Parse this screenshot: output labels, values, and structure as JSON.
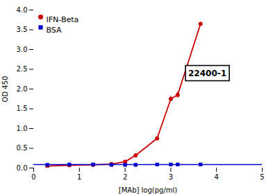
{
  "chart_data": {
    "type": "scatter",
    "title": "",
    "xlabel": "[MAb] log(pg/ml)",
    "ylabel": "OD 450",
    "xlim": [
      0,
      5
    ],
    "ylim": [
      0,
      4.0
    ],
    "xticks": [
      0,
      1,
      2,
      3,
      4,
      5
    ],
    "yticks": [
      {
        "value": 0.0,
        "label": "0.0"
      },
      0.5,
      {
        "value": 1.0,
        "label": "1.0"
      },
      1.5,
      {
        "value": 2.0,
        "label": "2.0"
      },
      2.5,
      {
        "value": 3.0,
        "label": "3.0"
      },
      3.5,
      {
        "value": 4.0,
        "label": "4.0"
      }
    ],
    "grid": false,
    "legend": "upper left",
    "annotation": "22400-1",
    "series": [
      {
        "name": "IFN-Beta",
        "color": "#cc0000",
        "marker": "circle",
        "line_style": "solid",
        "x": [
          0.3,
          0.78,
          1.3,
          1.7,
          2.0,
          2.23,
          2.7,
          3.0,
          3.15,
          3.65
        ],
        "values": [
          0.05,
          0.07,
          0.08,
          0.1,
          0.16,
          0.32,
          0.75,
          1.75,
          1.85,
          3.65
        ],
        "errors": [
          0.01,
          0.01,
          0.01,
          0.01,
          0.02,
          0.03,
          0.04,
          0.07,
          0.08,
          0.05
        ]
      },
      {
        "name": "BSA",
        "color": "#0000cc",
        "marker": "square",
        "line_style": "solid",
        "x": [
          0.3,
          0.78,
          1.3,
          1.7,
          2.0,
          2.23,
          2.7,
          3.0,
          3.15,
          3.65
        ],
        "values": [
          0.08,
          0.09,
          0.09,
          0.08,
          0.08,
          0.08,
          0.09,
          0.09,
          0.09,
          0.09
        ],
        "errors": [
          0.01,
          0.01,
          0.01,
          0.01,
          0.01,
          0.01,
          0.01,
          0.01,
          0.01,
          0.01
        ],
        "mean": 0.086
      }
    ]
  }
}
